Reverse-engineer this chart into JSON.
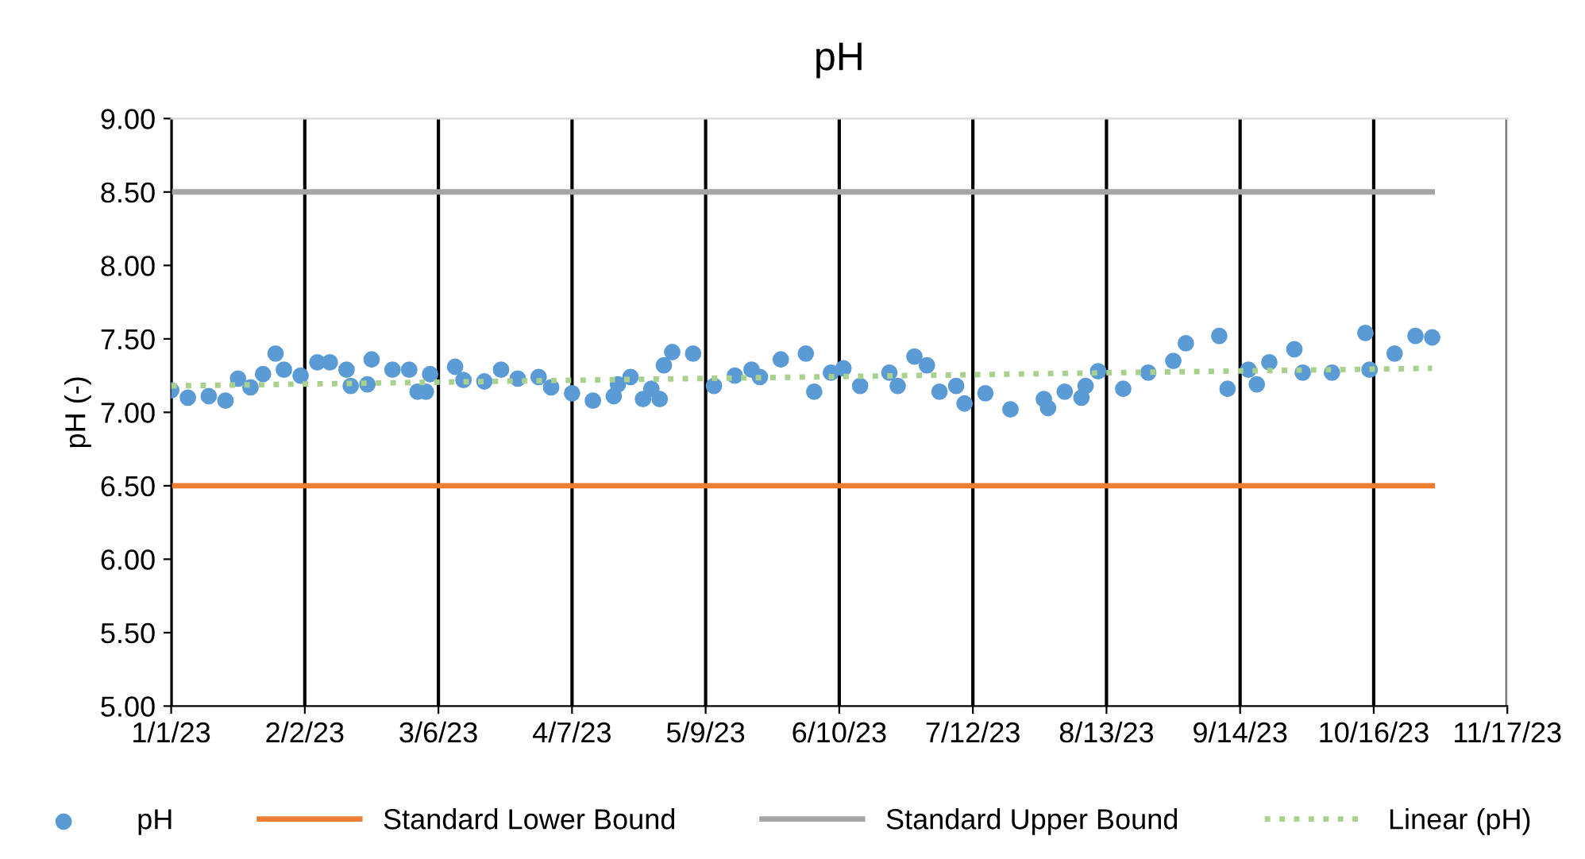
{
  "chart_data": {
    "type": "scatter",
    "title": "pH",
    "ylabel": "pH (-)",
    "xlim": [
      "2023-01-01",
      "2023-11-17"
    ],
    "xticks": [
      {
        "value": "2023-01-01",
        "label": "1/1/23"
      },
      {
        "value": "2023-02-02",
        "label": "2/2/23"
      },
      {
        "value": "2023-03-06",
        "label": "3/6/23"
      },
      {
        "value": "2023-04-07",
        "label": "4/7/23"
      },
      {
        "value": "2023-05-09",
        "label": "5/9/23"
      },
      {
        "value": "2023-06-10",
        "label": "6/10/23"
      },
      {
        "value": "2023-07-12",
        "label": "7/12/23"
      },
      {
        "value": "2023-08-13",
        "label": "8/13/23"
      },
      {
        "value": "2023-09-14",
        "label": "9/14/23"
      },
      {
        "value": "2023-10-16",
        "label": "10/16/23"
      },
      {
        "value": "2023-11-17",
        "label": "11/17/23"
      }
    ],
    "ylim": [
      5,
      9
    ],
    "yticks": [
      {
        "value": 5,
        "label": "5.00"
      },
      {
        "value": 5.5,
        "label": "5.50"
      },
      {
        "value": 6,
        "label": "6.00"
      },
      {
        "value": 6.5,
        "label": "6.50"
      },
      {
        "value": 7,
        "label": "7.00"
      },
      {
        "value": 7.5,
        "label": "7.50"
      },
      {
        "value": 8,
        "label": "8.00"
      },
      {
        "value": 8.5,
        "label": "8.50"
      },
      {
        "value": 9,
        "label": "9.00"
      }
    ],
    "grid": "x",
    "legend": "bottom",
    "series": [
      {
        "name": "pH",
        "marker": "circle",
        "color": "#5b9bd5",
        "x": [
          "2023-01-01",
          "2023-01-05",
          "2023-01-10",
          "2023-01-14",
          "2023-01-17",
          "2023-01-20",
          "2023-01-23",
          "2023-01-26",
          "2023-01-28",
          "2023-02-01",
          "2023-02-05",
          "2023-02-08",
          "2023-02-12",
          "2023-02-13",
          "2023-02-17",
          "2023-02-18",
          "2023-02-23",
          "2023-02-27",
          "2023-03-01",
          "2023-03-03",
          "2023-03-04",
          "2023-03-10",
          "2023-03-12",
          "2023-03-17",
          "2023-03-21",
          "2023-03-25",
          "2023-03-30",
          "2023-04-02",
          "2023-04-07",
          "2023-04-12",
          "2023-04-17",
          "2023-04-18",
          "2023-04-21",
          "2023-04-24",
          "2023-04-26",
          "2023-04-28",
          "2023-04-29",
          "2023-05-01",
          "2023-05-06",
          "2023-05-11",
          "2023-05-16",
          "2023-05-20",
          "2023-05-22",
          "2023-05-27",
          "2023-06-02",
          "2023-06-04",
          "2023-06-08",
          "2023-06-11",
          "2023-06-15",
          "2023-06-22",
          "2023-06-24",
          "2023-06-28",
          "2023-07-01",
          "2023-07-04",
          "2023-07-08",
          "2023-07-10",
          "2023-07-15",
          "2023-07-21",
          "2023-07-29",
          "2023-07-30",
          "2023-08-03",
          "2023-08-07",
          "2023-08-08",
          "2023-08-11",
          "2023-08-17",
          "2023-08-23",
          "2023-08-29",
          "2023-09-01",
          "2023-09-09",
          "2023-09-11",
          "2023-09-16",
          "2023-09-18",
          "2023-09-21",
          "2023-09-27",
          "2023-09-29",
          "2023-10-06",
          "2023-10-14",
          "2023-10-15",
          "2023-10-21",
          "2023-10-26",
          "2023-10-30"
        ],
        "values": [
          7.15,
          7.1,
          7.11,
          7.08,
          7.23,
          7.17,
          7.26,
          7.4,
          7.29,
          7.25,
          7.34,
          7.34,
          7.29,
          7.18,
          7.19,
          7.36,
          7.29,
          7.29,
          7.14,
          7.14,
          7.26,
          7.31,
          7.22,
          7.21,
          7.29,
          7.23,
          7.24,
          7.17,
          7.13,
          7.08,
          7.11,
          7.19,
          7.24,
          7.09,
          7.16,
          7.09,
          7.32,
          7.41,
          7.4,
          7.18,
          7.25,
          7.29,
          7.24,
          7.36,
          7.4,
          7.14,
          7.27,
          7.3,
          7.18,
          7.27,
          7.18,
          7.38,
          7.32,
          7.14,
          7.18,
          7.06,
          7.13,
          7.02,
          7.09,
          7.03,
          7.14,
          7.1,
          7.18,
          7.28,
          7.16,
          7.27,
          7.35,
          7.47,
          7.52,
          7.16,
          7.29,
          7.19,
          7.34,
          7.43,
          7.27,
          7.27,
          7.54,
          7.29,
          7.4,
          7.52,
          7.51
        ]
      },
      {
        "name": "Standard Lower Bound",
        "type": "line",
        "color": "#ed7d31",
        "line_style": "solid",
        "x": [
          "2023-01-01",
          "2023-10-30"
        ],
        "values": [
          6.5,
          6.5
        ]
      },
      {
        "name": "Standard Upper Bound",
        "type": "line",
        "color": "#a5a5a5",
        "line_style": "solid",
        "x": [
          "2023-01-01",
          "2023-10-30"
        ],
        "values": [
          8.5,
          8.5
        ]
      },
      {
        "name": "Linear (pH)",
        "type": "line",
        "color": "#a9d18e",
        "line_style": "dotted",
        "x": [
          "2023-01-01",
          "2023-10-30"
        ],
        "values": [
          7.18,
          7.3
        ]
      }
    ]
  }
}
